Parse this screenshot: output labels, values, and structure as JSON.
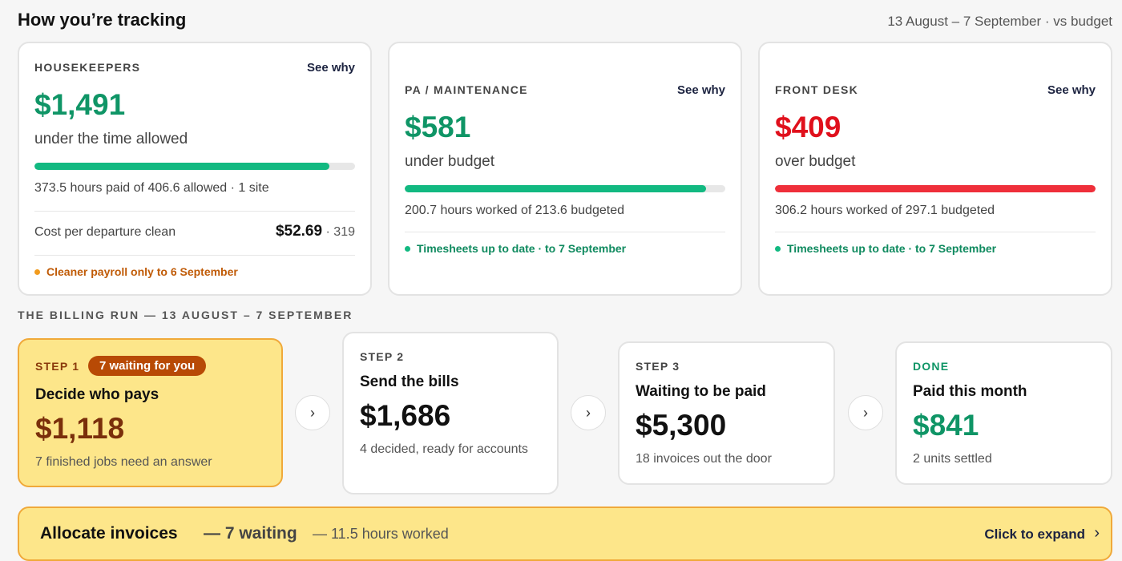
{
  "header": {
    "title": "How you’re tracking",
    "range": "13 August – 7 September · vs budget"
  },
  "cards": [
    {
      "label": "HOUSEKEEPERS",
      "see_why": "See why",
      "amount": "$1,491",
      "sub": "under the time allowed",
      "progress": 0.92,
      "detail": "373.5 hours paid of 406.6 allowed · 1 site",
      "cost_label": "Cost per departure clean",
      "cost_value": "$52.69",
      "cost_count": "· 319",
      "note": "Cleaner payroll only to 6 September"
    },
    {
      "label": "PA / MAINTENANCE",
      "see_why": "See why",
      "amount": "$581",
      "sub": "under budget",
      "progress": 0.94,
      "detail": "200.7 hours worked of 213.6 budgeted",
      "note": "Timesheets up to date · to 7 September"
    },
    {
      "label": "FRONT DESK",
      "see_why": "See why",
      "amount": "$409",
      "sub": "over budget",
      "progress": 1.0,
      "detail": "306.2 hours worked of 297.1 budgeted",
      "note": "Timesheets up to date · to 7 September"
    }
  ],
  "billing": {
    "heading": "THE BILLING RUN — 13 AUGUST – 7 SEPTEMBER",
    "steps": [
      {
        "label": "STEP 1",
        "badge": "7 waiting for you",
        "title": "Decide who pays",
        "amount": "$1,118",
        "desc": "7 finished jobs need an answer"
      },
      {
        "label": "STEP 2",
        "title": "Send the bills",
        "amount": "$1,686",
        "desc": "4 decided, ready for accounts"
      },
      {
        "label": "STEP 3",
        "title": "Waiting to be paid",
        "amount": "$5,300",
        "desc": "18 invoices out the door"
      },
      {
        "label": "DONE",
        "title": "Paid this month",
        "amount": "$841",
        "desc": "2 units settled"
      }
    ],
    "arrow_glyph": "›"
  },
  "allocate": {
    "title": "Allocate invoices",
    "waiting": "— 7 waiting",
    "hours": "— 11.5 hours worked",
    "expand": "Click to expand",
    "chevron": "›"
  },
  "colors": {
    "under": "#0f9566",
    "over": "#e0101c",
    "accent_yellow": "#fde68a",
    "accent_orange": "#f0a93a"
  }
}
